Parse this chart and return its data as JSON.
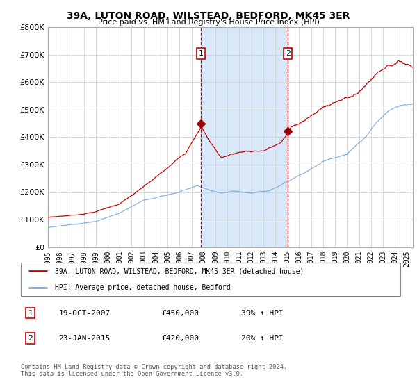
{
  "title": "39A, LUTON ROAD, WILSTEAD, BEDFORD, MK45 3ER",
  "subtitle": "Price paid vs. HM Land Registry's House Price Index (HPI)",
  "legend_line1": "39A, LUTON ROAD, WILSTEAD, BEDFORD, MK45 3ER (detached house)",
  "legend_line2": "HPI: Average price, detached house, Bedford",
  "footer": "Contains HM Land Registry data © Crown copyright and database right 2024.\nThis data is licensed under the Open Government Licence v3.0.",
  "transactions": [
    {
      "label": "1",
      "date": "19-OCT-2007",
      "price": 450000,
      "pct": "39%",
      "direction": "↑",
      "year": 2007.8
    },
    {
      "label": "2",
      "date": "23-JAN-2015",
      "price": 420000,
      "pct": "20%",
      "direction": "↑",
      "year": 2015.05
    }
  ],
  "red_line_color": "#cc0000",
  "blue_line_color": "#7aaadd",
  "shade_color": "#d8e8f8",
  "marker_box_color": "#cc0000",
  "marker_dot_color": "#990000",
  "ylim": [
    0,
    800000
  ],
  "yticks": [
    0,
    100000,
    200000,
    300000,
    400000,
    500000,
    600000,
    700000,
    800000
  ],
  "ytick_labels": [
    "£0",
    "£100K",
    "£200K",
    "£300K",
    "£400K",
    "£500K",
    "£600K",
    "£700K",
    "£800K"
  ],
  "xlim_start": 1995.0,
  "xlim_end": 2025.5
}
